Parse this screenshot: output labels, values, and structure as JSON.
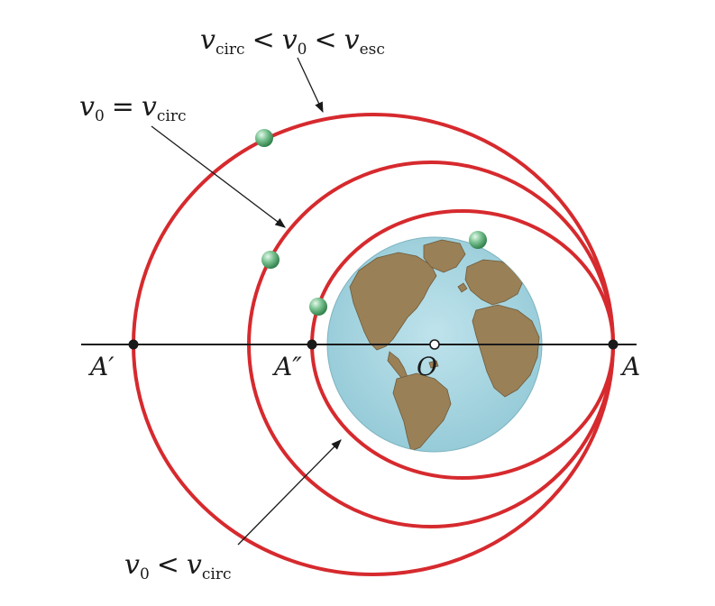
{
  "labels": {
    "top": {
      "v": "v",
      "circ": "circ",
      "lt1": "<",
      "v0": "v",
      "zero": "0",
      "lt2": "<",
      "v2": "v",
      "esc": "esc"
    },
    "middle": {
      "v0": "v",
      "zero": "0",
      "eq": "=",
      "v": "v",
      "circ": "circ"
    },
    "bottom": {
      "v0": "v",
      "zero": "0",
      "lt": "<",
      "v": "v",
      "circ": "circ"
    },
    "points": {
      "a_prime": "A′",
      "a_double_prime": "A″",
      "o": "O",
      "a": "A"
    }
  },
  "colors": {
    "orbit": "#d62a2e",
    "axis": "#1a1a1a",
    "ocean": "#a9d7e2",
    "land": "#9a8057",
    "satellite": "#7dc594"
  },
  "icons": {
    "satellite": "green-sphere-satellite",
    "earth": "earth-globe"
  }
}
